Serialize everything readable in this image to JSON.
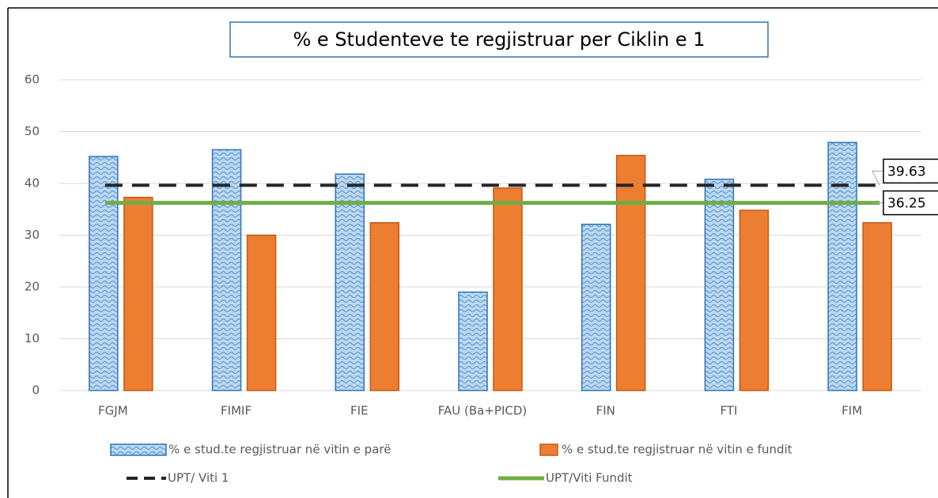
{
  "chart_data": {
    "type": "bar",
    "title": "% e Studenteve te regjistruar per Ciklin e 1",
    "categories": [
      "FGJM",
      "FIMIF",
      "FIE",
      "FAU (Ba+PICD)",
      "FIN",
      "FTI",
      "FIM"
    ],
    "series": [
      {
        "name": "% e stud.te regjistruar në vitin e parë",
        "type": "bar",
        "color": "#9dc3e6",
        "edge": "#2e75b6",
        "values": [
          45.2,
          46.5,
          41.8,
          19.0,
          32.1,
          40.8,
          47.9
        ]
      },
      {
        "name": "% e stud.te regjistruar në vitin e fundit",
        "type": "bar",
        "color": "#ed7d31",
        "edge": "#c55a11",
        "values": [
          37.3,
          30.0,
          32.4,
          39.1,
          45.4,
          34.8,
          32.4
        ]
      },
      {
        "name": "UPT/ Viti 1",
        "type": "line",
        "dashed": true,
        "color": "#262626",
        "values": [
          39.63,
          39.63,
          39.63,
          39.63,
          39.63,
          39.63,
          39.63
        ]
      },
      {
        "name": "UPT/Viti Fundit",
        "type": "line",
        "dashed": false,
        "color": "#70ad47",
        "values": [
          36.25,
          36.25,
          36.25,
          36.25,
          36.25,
          36.25,
          36.25
        ]
      }
    ],
    "ylim": [
      0,
      60
    ],
    "yticks": [
      0,
      10,
      20,
      30,
      40,
      50,
      60
    ],
    "grid": true
  }
}
